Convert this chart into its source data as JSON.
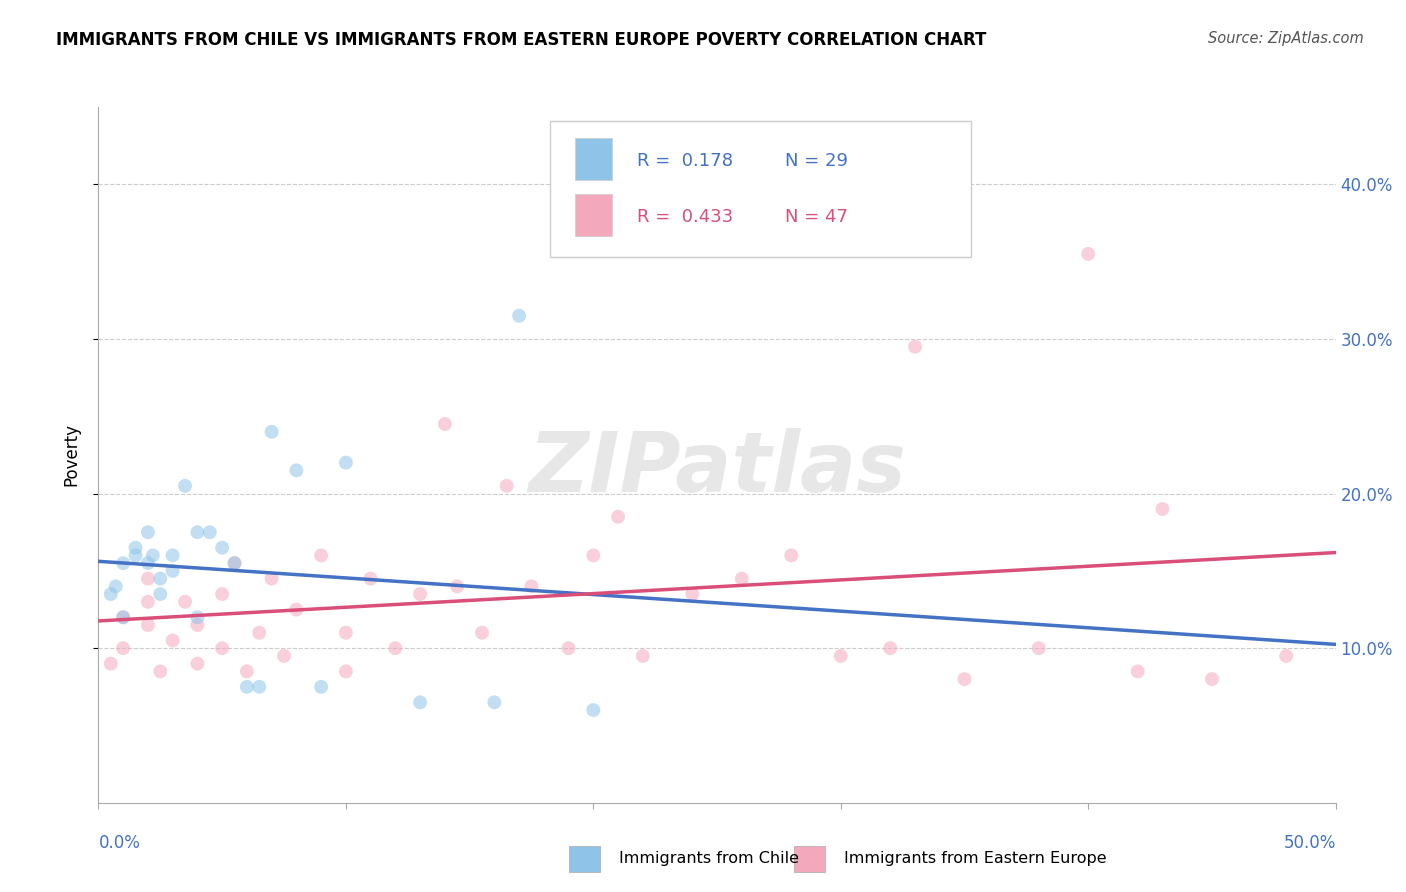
{
  "title": "IMMIGRANTS FROM CHILE VS IMMIGRANTS FROM EASTERN EUROPE POVERTY CORRELATION CHART",
  "source": "Source: ZipAtlas.com",
  "ylabel": "Poverty",
  "r_chile": 0.178,
  "n_chile": 29,
  "r_eastern": 0.433,
  "n_eastern": 47,
  "xlim": [
    0.0,
    0.5
  ],
  "ylim": [
    0.0,
    0.45
  ],
  "yticks": [
    0.1,
    0.2,
    0.3,
    0.4
  ],
  "ytick_labels": [
    "10.0%",
    "20.0%",
    "30.0%",
    "40.0%"
  ],
  "color_chile": "#8fc4e8",
  "color_eastern": "#f4a8bc",
  "color_chile_line": "#4472c4",
  "color_eastern_line": "#d94f7a",
  "color_blue_text": "#4472c4",
  "color_pink_text": "#d94f7a",
  "watermark": "ZIPatlas",
  "chile_x": [
    0.005,
    0.007,
    0.01,
    0.01,
    0.015,
    0.015,
    0.02,
    0.02,
    0.022,
    0.025,
    0.025,
    0.03,
    0.03,
    0.035,
    0.04,
    0.04,
    0.045,
    0.05,
    0.055,
    0.06,
    0.065,
    0.07,
    0.08,
    0.09,
    0.1,
    0.13,
    0.16,
    0.17,
    0.2
  ],
  "chile_y": [
    0.135,
    0.14,
    0.12,
    0.155,
    0.16,
    0.165,
    0.155,
    0.175,
    0.16,
    0.135,
    0.145,
    0.15,
    0.16,
    0.205,
    0.12,
    0.175,
    0.175,
    0.165,
    0.155,
    0.075,
    0.075,
    0.24,
    0.215,
    0.075,
    0.22,
    0.065,
    0.065,
    0.315,
    0.06
  ],
  "eastern_x": [
    0.005,
    0.01,
    0.01,
    0.02,
    0.02,
    0.02,
    0.025,
    0.03,
    0.035,
    0.04,
    0.04,
    0.05,
    0.05,
    0.055,
    0.06,
    0.065,
    0.07,
    0.075,
    0.08,
    0.09,
    0.1,
    0.1,
    0.11,
    0.12,
    0.13,
    0.14,
    0.145,
    0.155,
    0.165,
    0.175,
    0.19,
    0.2,
    0.21,
    0.22,
    0.24,
    0.26,
    0.28,
    0.3,
    0.32,
    0.33,
    0.35,
    0.38,
    0.4,
    0.42,
    0.43,
    0.45,
    0.48
  ],
  "eastern_y": [
    0.09,
    0.1,
    0.12,
    0.115,
    0.13,
    0.145,
    0.085,
    0.105,
    0.13,
    0.09,
    0.115,
    0.1,
    0.135,
    0.155,
    0.085,
    0.11,
    0.145,
    0.095,
    0.125,
    0.16,
    0.085,
    0.11,
    0.145,
    0.1,
    0.135,
    0.245,
    0.14,
    0.11,
    0.205,
    0.14,
    0.1,
    0.16,
    0.185,
    0.095,
    0.135,
    0.145,
    0.16,
    0.095,
    0.1,
    0.295,
    0.08,
    0.1,
    0.355,
    0.085,
    0.19,
    0.08,
    0.095
  ],
  "marker_size": 100,
  "alpha": 0.55
}
